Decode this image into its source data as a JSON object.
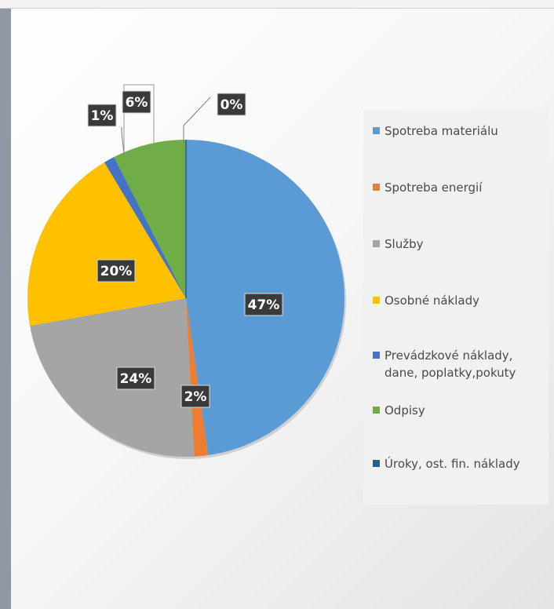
{
  "chart_data": {
    "type": "pie",
    "slices": [
      {
        "name": "Spotreba materiálu",
        "value": 47,
        "label": "47%",
        "color": "#5b9bd5"
      },
      {
        "name": "Spotreba energií",
        "value": 2,
        "label": "2%",
        "color": "#ed7d31"
      },
      {
        "name": "Služby",
        "value": 24,
        "label": "24%",
        "color": "#a5a5a5"
      },
      {
        "name": "Osobné náklady",
        "value": 20,
        "label": "20%",
        "color": "#ffc000"
      },
      {
        "name": "Prevádzkové náklady, dane, poplatky,pokuty",
        "value": 1,
        "label": "1%",
        "color": "#4472c4"
      },
      {
        "name": "Odpisy",
        "value": 6,
        "label": "6%",
        "color": "#70ad47"
      },
      {
        "name": "Úroky, ost. fin. náklady",
        "value": 0,
        "label": "0%",
        "color": "#255e91"
      }
    ],
    "legend": {
      "position": "right",
      "items": [
        [
          "Spotreba materiálu"
        ],
        [
          "Spotreba energií"
        ],
        [
          "Služby"
        ],
        [
          "Osobné náklady"
        ],
        [
          "Prevádzkové náklady,",
          "dane, poplatky,pokuty"
        ],
        [
          "Odpisy"
        ],
        [
          "Úroky, ost. fin. náklady"
        ]
      ]
    }
  }
}
